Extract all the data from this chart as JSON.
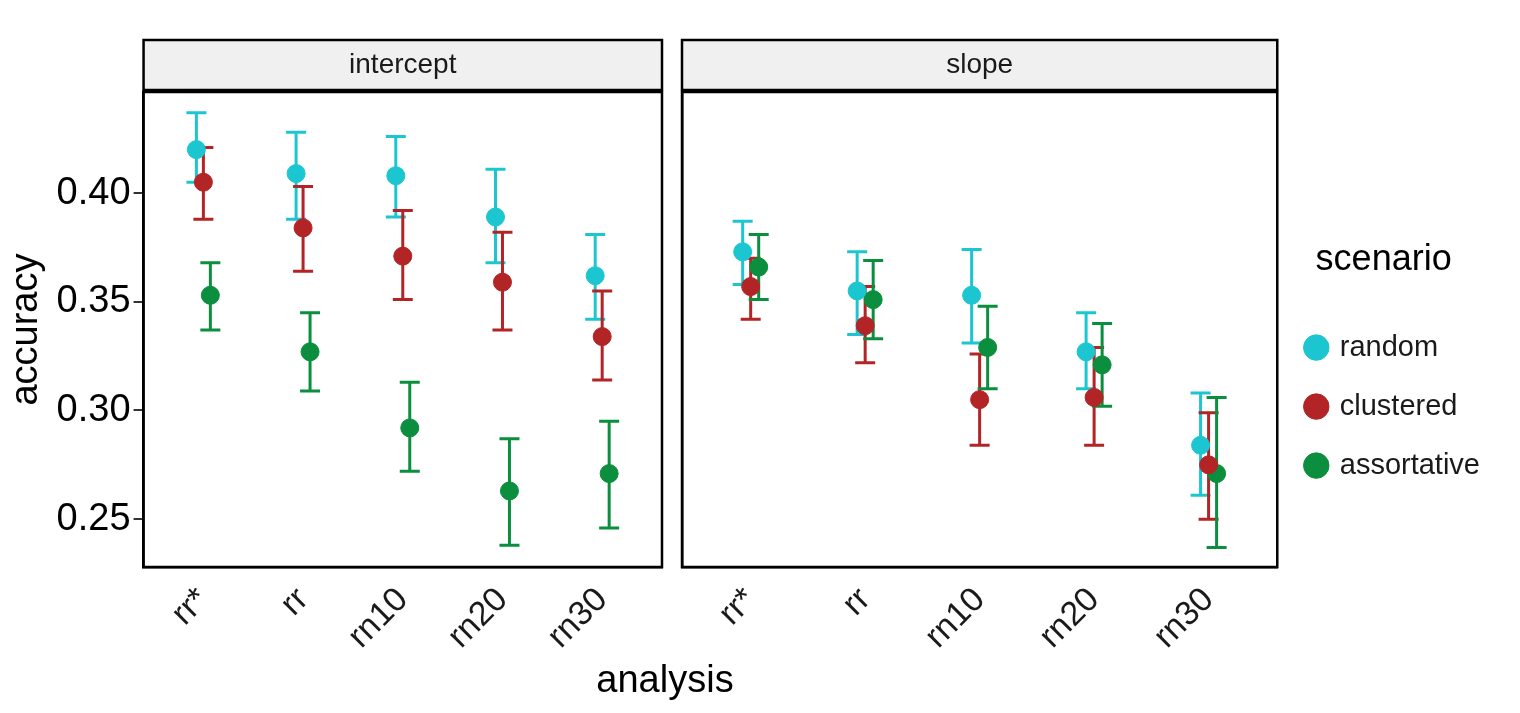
{
  "chart_data": [
    {
      "type": "scatter",
      "title": "intercept",
      "xlabel": "analysis",
      "ylabel": "accuracy",
      "categories": [
        "rr*",
        "rr",
        "rn10",
        "rn20",
        "rn30"
      ],
      "ylim": [
        0.228,
        0.4465
      ],
      "yticks": [
        {
          "value": 0.25,
          "label": "0.25"
        },
        {
          "value": 0.3,
          "label": "0.30"
        },
        {
          "value": 0.35,
          "label": "0.35"
        },
        {
          "value": 0.4,
          "label": "0.40"
        }
      ],
      "marker": "circle",
      "series": [
        {
          "color": "#1cc6d0",
          "values": [
            0.42,
            0.409,
            0.408,
            0.389,
            0.362
          ],
          "errors": [
            [
              0.405,
              0.437
            ],
            [
              0.388,
              0.428
            ],
            [
              0.389,
              0.426
            ],
            [
              0.368,
              0.411
            ],
            [
              0.342,
              0.381
            ]
          ]
        },
        {
          "color": "#b22426",
          "values": [
            0.405,
            0.384,
            0.371,
            0.359,
            0.334
          ],
          "errors": [
            [
              0.388,
              0.421
            ],
            [
              0.364,
              0.403
            ],
            [
              0.351,
              0.392
            ],
            [
              0.337,
              0.382
            ],
            [
              0.314,
              0.355
            ]
          ]
        },
        {
          "color": "#0b8e3e",
          "values": [
            0.353,
            0.327,
            0.292,
            0.263,
            0.271
          ],
          "errors": [
            [
              0.337,
              0.368
            ],
            [
              0.309,
              0.345
            ],
            [
              0.272,
              0.313
            ],
            [
              0.238,
              0.287
            ],
            [
              0.246,
              0.295
            ]
          ]
        }
      ]
    },
    {
      "type": "scatter",
      "title": "slope",
      "categories": [
        "rr*",
        "rr",
        "rn10",
        "rn20",
        "rn30"
      ],
      "ylim": [
        0.228,
        0.4465
      ],
      "tick_labels": "x",
      "marker": "circle",
      "legend": "right",
      "legend_title": "scenario",
      "series": [
        {
          "name": "random",
          "color": "#1cc6d0",
          "values": [
            0.373,
            0.355,
            0.353,
            0.327,
            0.284
          ],
          "errors": [
            [
              0.358,
              0.387
            ],
            [
              0.335,
              0.373
            ],
            [
              0.331,
              0.374
            ],
            [
              0.31,
              0.345
            ],
            [
              0.261,
              0.308
            ]
          ]
        },
        {
          "name": "clustered",
          "color": "#b22426",
          "values": [
            0.357,
            0.339,
            0.305,
            0.306,
            0.275
          ],
          "errors": [
            [
              0.342,
              0.37
            ],
            [
              0.322,
              0.357
            ],
            [
              0.284,
              0.326
            ],
            [
              0.284,
              0.329
            ],
            [
              0.25,
              0.299
            ]
          ]
        },
        {
          "name": "assortative",
          "color": "#0b8e3e",
          "values": [
            0.366,
            0.351,
            0.329,
            0.321,
            0.271
          ],
          "errors": [
            [
              0.351,
              0.381
            ],
            [
              0.333,
              0.369
            ],
            [
              0.31,
              0.348
            ],
            [
              0.302,
              0.34
            ],
            [
              0.237,
              0.306
            ]
          ]
        }
      ]
    }
  ]
}
